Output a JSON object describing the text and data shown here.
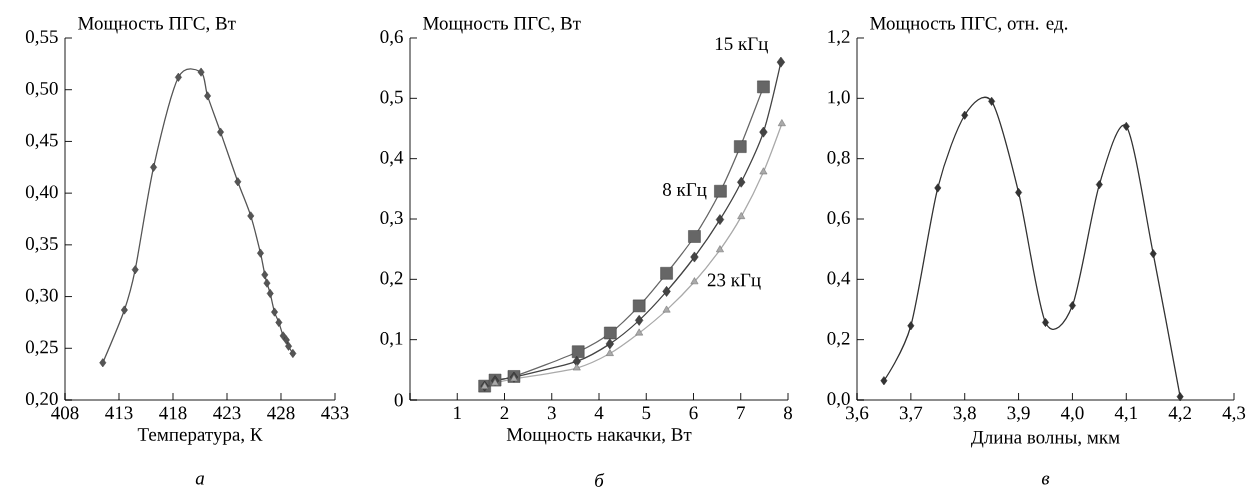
{
  "chart_data": [
    {
      "type": "line",
      "ylabel": "Мощность ПГС, Вт",
      "xlabel": "Температура, К",
      "annotations": [
        "а"
      ],
      "x": [
        411.5,
        413.5,
        414.5,
        416.2,
        418.5,
        420.6,
        421.2,
        422.4,
        424.0,
        425.2,
        426.1,
        426.5,
        426.7,
        427.0,
        427.4,
        427.8,
        428.2,
        428.5,
        428.7,
        429.1
      ],
      "values": [
        0.236,
        0.287,
        0.326,
        0.425,
        0.512,
        0.517,
        0.494,
        0.459,
        0.411,
        0.378,
        0.342,
        0.321,
        0.313,
        0.303,
        0.285,
        0.275,
        0.262,
        0.258,
        0.252,
        0.245
      ],
      "color": "#555555",
      "marker": "diamond",
      "xlim": [
        408,
        433
      ],
      "ylim": [
        0.2,
        0.55
      ],
      "xticks": [
        408,
        413,
        418,
        423,
        428,
        433
      ],
      "yticks": [
        {
          "value": 0.2,
          "label": "0,20"
        },
        {
          "value": 0.25,
          "label": "0,25"
        },
        {
          "value": 0.3,
          "label": "0,30"
        },
        {
          "value": 0.35,
          "label": "0,35"
        },
        {
          "value": 0.4,
          "label": "0,40"
        },
        {
          "value": 0.45,
          "label": "0,45"
        },
        {
          "value": 0.5,
          "label": "0,50"
        },
        {
          "value": 0.55,
          "label": "0,55"
        }
      ]
    },
    {
      "type": "line",
      "ylabel": "Мощность ПГС, Вт",
      "xlabel": "Мощность накачки, Вт",
      "annotations": [
        "б"
      ],
      "series": [
        {
          "name": "8 кГц",
          "color": "#666666",
          "marker": "square",
          "x": [
            1.58,
            1.8,
            2.2,
            3.56,
            4.24,
            4.85,
            5.43,
            6.02,
            6.57,
            6.99,
            7.48
          ],
          "values": [
            0.023,
            0.033,
            0.039,
            0.08,
            0.111,
            0.156,
            0.21,
            0.271,
            0.346,
            0.42,
            0.519
          ]
        },
        {
          "name": "15 кГц",
          "color": "#444444",
          "marker": "diamond",
          "x": [
            1.58,
            1.8,
            2.2,
            3.53,
            4.23,
            4.85,
            5.43,
            6.02,
            6.56,
            7.01,
            7.48,
            7.85
          ],
          "values": [
            0.023,
            0.032,
            0.038,
            0.064,
            0.093,
            0.132,
            0.18,
            0.237,
            0.299,
            0.361,
            0.444,
            0.56
          ]
        },
        {
          "name": "23 кГц",
          "color": "#aaaaaa",
          "marker": "triangle",
          "x": [
            1.58,
            1.8,
            2.2,
            3.53,
            4.23,
            4.85,
            5.43,
            6.02,
            6.56,
            7.01,
            7.48,
            7.87
          ],
          "values": [
            0.022,
            0.028,
            0.035,
            0.053,
            0.077,
            0.111,
            0.149,
            0.196,
            0.249,
            0.304,
            0.378,
            0.458
          ]
        }
      ],
      "xlim": [
        0,
        8
      ],
      "ylim": [
        0,
        0.6
      ],
      "xticks": [
        {
          "value": 0,
          "label": null
        },
        1,
        2,
        3,
        4,
        5,
        6,
        7,
        8
      ],
      "yticks": [
        0,
        {
          "value": 0.1,
          "label": "0,1"
        },
        {
          "value": 0.2,
          "label": "0,2"
        },
        {
          "value": 0.3,
          "label": "0,3"
        },
        {
          "value": 0.4,
          "label": "0,4"
        },
        {
          "value": 0.5,
          "label": "0,5"
        },
        {
          "value": 0.6,
          "label": "0,6"
        }
      ]
    },
    {
      "type": "line",
      "ylabel": "Мощность ПГС, отн. ед.",
      "xlabel": "Длина волны, мкм",
      "annotations": [
        "в"
      ],
      "x": [
        3.65,
        3.7,
        3.75,
        3.8,
        3.85,
        3.9,
        3.95,
        4.0,
        4.05,
        4.1,
        4.15,
        4.2
      ],
      "values": [
        0.064,
        0.246,
        0.703,
        0.944,
        0.99,
        0.688,
        0.257,
        0.313,
        0.714,
        0.907,
        0.485,
        0.011
      ],
      "color": "#333333",
      "marker": "diamond",
      "xlim": [
        3.6,
        4.3
      ],
      "ylim": [
        0,
        1.2
      ],
      "xticks": [
        {
          "value": 3.6,
          "label": "3,6"
        },
        {
          "value": 3.7,
          "label": "3,7"
        },
        {
          "value": 3.8,
          "label": "3,8"
        },
        {
          "value": 3.9,
          "label": "3,9"
        },
        {
          "value": 4.0,
          "label": "4,0"
        },
        {
          "value": 4.1,
          "label": "4,1"
        },
        {
          "value": 4.2,
          "label": "4,2"
        },
        {
          "value": 4.3,
          "label": "4,3"
        }
      ],
      "yticks": [
        {
          "value": 0,
          "label": "0,0"
        },
        {
          "value": 0.2,
          "label": "0,2"
        },
        {
          "value": 0.4,
          "label": "0,4"
        },
        {
          "value": 0.6,
          "label": "0,6"
        },
        {
          "value": 0.8,
          "label": "0,8"
        },
        {
          "value": 1.0,
          "label": "1,0"
        },
        {
          "value": 1.2,
          "label": "1,2"
        }
      ]
    }
  ]
}
